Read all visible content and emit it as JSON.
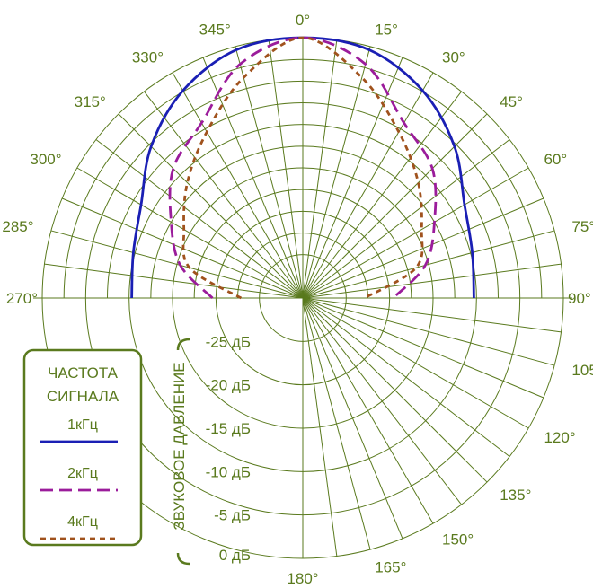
{
  "chart_data": {
    "type": "polar",
    "angle_labels": [
      "0°",
      "15°",
      "30°",
      "45°",
      "60°",
      "75°",
      "90°",
      "105°",
      "120°",
      "135°",
      "150°",
      "165°",
      "180°",
      "345°",
      "330°",
      "315°",
      "300°",
      "285°",
      "270°"
    ],
    "angles_deg": [
      0,
      15,
      30,
      45,
      60,
      75,
      90,
      105,
      120,
      135,
      150,
      165,
      180,
      -15,
      -30,
      -45,
      -60,
      -75,
      -90
    ],
    "radial_ticks": [
      "0 дБ",
      "-5 дБ",
      "-10 дБ",
      "-15 дБ",
      "-20 дБ",
      "-25 дБ"
    ],
    "radial_values": [
      0,
      -5,
      -10,
      -15,
      -20,
      -25
    ],
    "rlim": [
      -30,
      0
    ],
    "radial_axis_label": "ЗВУКОВОЕ ДАВЛЕНИЕ",
    "grid": true,
    "legend": {
      "title_line1": "ЧАСТОТА",
      "title_line2": "СИГНАЛА",
      "placement": "bottom-left"
    },
    "series": [
      {
        "name": "1кГц",
        "color": "#1a1fb4",
        "dash": "solid",
        "angles": [
          -90,
          -75,
          -60,
          -45,
          -30,
          -15,
          0,
          15,
          30,
          45,
          60,
          75,
          90
        ],
        "values": [
          -10.3,
          -9.8,
          -8.5,
          -5.3,
          -2.4,
          -0.4,
          0,
          -0.4,
          -2.4,
          -5.3,
          -8.5,
          -9.8,
          -10.3
        ]
      },
      {
        "name": "2кГц",
        "color": "#9b1c9b",
        "dash": "long",
        "angles": [
          -90,
          -75,
          -60,
          -45,
          -30,
          -15,
          0,
          15,
          30,
          45,
          60,
          75,
          90
        ],
        "values": [
          -19.6,
          -15.4,
          -12.5,
          -8.9,
          -6.7,
          -2.1,
          0,
          -2.1,
          -6.7,
          -8.9,
          -12.5,
          -15.4,
          -19.6
        ]
      },
      {
        "name": "4кГц",
        "color": "#a0521d",
        "dash": "short",
        "angles": [
          -90,
          -75,
          -60,
          -45,
          -30,
          -15,
          0,
          15,
          30,
          45,
          60,
          75,
          90
        ],
        "values": [
          -22.9,
          -16.5,
          -14.2,
          -11.2,
          -7.9,
          -3.7,
          0,
          -3.7,
          -7.9,
          -11.2,
          -14.2,
          -16.5,
          -22.9
        ]
      }
    ]
  }
}
